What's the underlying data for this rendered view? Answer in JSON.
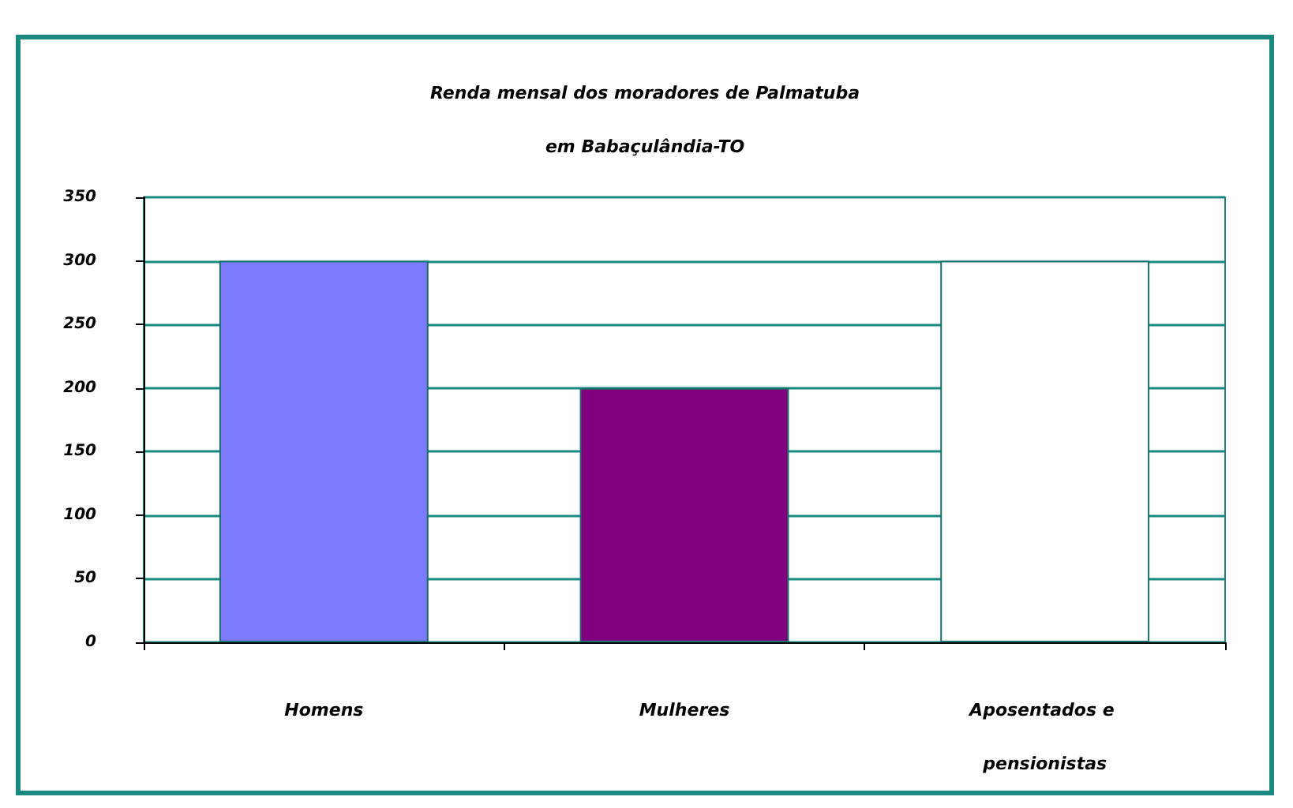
{
  "chart_data": {
    "type": "bar",
    "title": "Renda mensal dos moradores de Palmatuba\nem Babaçulândia-TO",
    "categories": [
      "Homens",
      "Mulheres",
      "Aposentados e pensionistas"
    ],
    "values": [
      300,
      200,
      300
    ],
    "colors": [
      "#7b7bff",
      "#800080",
      "#ffffff"
    ],
    "ylim": [
      0,
      350
    ],
    "yticks": [
      0,
      50,
      100,
      150,
      200,
      250,
      300,
      350
    ],
    "grid": "y"
  }
}
